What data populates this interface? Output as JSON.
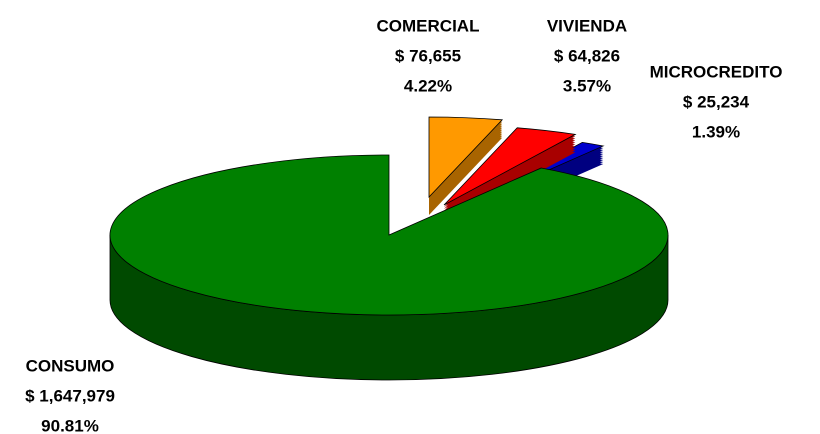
{
  "chart_data": {
    "type": "pie3d",
    "categories": [
      "CONSUMO",
      "COMERCIAL",
      "VIVIENDA",
      "MICROCREDITO"
    ],
    "values": [
      1647979,
      76655,
      64826,
      25234
    ],
    "value_labels": [
      "$ 1,647,979",
      "$ 76,655",
      "$ 64,826",
      "$ 25,234"
    ],
    "percents": [
      90.81,
      4.22,
      3.57,
      1.39
    ],
    "percent_labels": [
      "90.81%",
      "4.22%",
      "3.57%",
      "1.39%"
    ],
    "colors": [
      "#008000",
      "#ff9900",
      "#ff0000",
      "#0000cc"
    ],
    "side_colors": [
      "#004a00",
      "#a86400",
      "#a80000",
      "#000080"
    ]
  }
}
